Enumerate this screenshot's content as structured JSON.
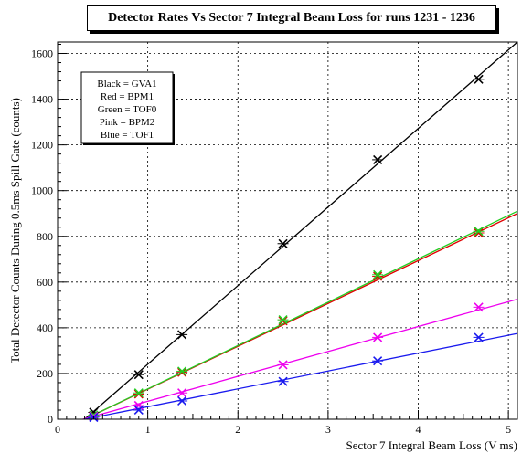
{
  "chart_data": {
    "type": "scatter",
    "title": "Detector Rates Vs Sector 7 Integral Beam Loss for runs 1231 - 1236",
    "xlabel": "Sector 7 Integral Beam Loss (V ms)",
    "ylabel": "Total Detector Counts During 0.5ms Spill Gate (counts)",
    "xlim": [
      0,
      5.1
    ],
    "ylim": [
      0,
      1650
    ],
    "xticks": [
      0,
      1,
      2,
      3,
      4,
      5
    ],
    "yticks": [
      0,
      200,
      400,
      600,
      800,
      1000,
      1200,
      1400,
      1600
    ],
    "grid": true,
    "legend_lines": [
      "Black = GVA1",
      "Red = BPM1",
      "Green = TOF0",
      "Pink = BPM2",
      "Blue = TOF1"
    ],
    "series": [
      {
        "color": "#000000",
        "x": [
          0.4,
          0.9,
          1.38,
          2.5,
          3.55,
          4.67
        ],
        "y": [
          30,
          195,
          370,
          768,
          1135,
          1487
        ],
        "fit": [
          [
            0.3,
            0
          ],
          [
            5.1,
            1650
          ]
        ]
      },
      {
        "color": "#e00000",
        "x": [
          0.4,
          0.9,
          1.38,
          2.5,
          3.55,
          4.67
        ],
        "y": [
          15,
          110,
          205,
          430,
          625,
          815
        ],
        "fit": [
          [
            0.3,
            0
          ],
          [
            5.1,
            900
          ]
        ]
      },
      {
        "color": "#22cc22",
        "x": [
          0.4,
          0.9,
          1.38,
          2.5,
          3.55,
          4.67
        ],
        "y": [
          18,
          115,
          210,
          435,
          632,
          822
        ],
        "fit": [
          [
            0.3,
            0
          ],
          [
            5.1,
            910
          ]
        ]
      },
      {
        "color": "#ee00ee",
        "x": [
          0.4,
          0.9,
          1.38,
          2.5,
          3.55,
          4.67
        ],
        "y": [
          12,
          60,
          115,
          238,
          358,
          490
        ],
        "fit": [
          [
            0.28,
            0
          ],
          [
            5.1,
            525
          ]
        ]
      },
      {
        "color": "#1a1aee",
        "x": [
          0.4,
          0.9,
          1.38,
          2.5,
          3.55,
          4.67
        ],
        "y": [
          8,
          40,
          80,
          165,
          255,
          358
        ],
        "fit": [
          [
            0.3,
            0
          ],
          [
            5.1,
            375
          ]
        ]
      }
    ]
  }
}
